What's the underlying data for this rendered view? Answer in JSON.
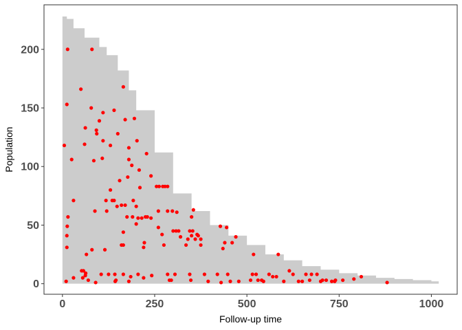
{
  "chart_data": {
    "type": "scatter",
    "title": "",
    "xlabel": "Follow-up time",
    "ylabel": "Population",
    "xlim": [
      -50,
      1070
    ],
    "ylim": [
      -9,
      238
    ],
    "x_ticks": [
      0,
      250,
      500,
      750,
      1000
    ],
    "y_ticks": [
      0,
      50,
      100,
      150,
      200
    ],
    "x_tick_labels": [
      "0",
      "250",
      "500",
      "750",
      "1000"
    ],
    "y_tick_labels": [
      "0",
      "50",
      "100",
      "150",
      "200"
    ],
    "grid": false,
    "legend": "none",
    "colors": {
      "area": "#cccccc",
      "points": "#ff0000",
      "panel_border": "#333333",
      "tick_text": "#4d4d4d"
    },
    "series": [
      {
        "kind": "area",
        "x": [
          0,
          12,
          30,
          60,
          100,
          120,
          150,
          180,
          200,
          250,
          300,
          350,
          400,
          450,
          500,
          550,
          600,
          650,
          700,
          750,
          800,
          850,
          900,
          950,
          1000,
          1020
        ],
        "values": [
          228,
          226,
          218,
          210,
          202,
          195,
          182,
          165,
          148,
          112,
          77,
          62,
          50,
          41,
          33,
          25,
          20,
          15,
          12,
          9,
          7,
          5,
          4,
          3,
          2,
          1
        ]
      },
      {
        "kind": "points",
        "points": [
          [
            5,
            118
          ],
          [
            10,
            2
          ],
          [
            12,
            153
          ],
          [
            14,
            200
          ],
          [
            12,
            41
          ],
          [
            13,
            49
          ],
          [
            15,
            57
          ],
          [
            12,
            31
          ],
          [
            25,
            106
          ],
          [
            30,
            71
          ],
          [
            30,
            5
          ],
          [
            50,
            166
          ],
          [
            52,
            11
          ],
          [
            55,
            5
          ],
          [
            57,
            11
          ],
          [
            60,
            119
          ],
          [
            62,
            133
          ],
          [
            62,
            7
          ],
          [
            63,
            9
          ],
          [
            65,
            25
          ],
          [
            70,
            3
          ],
          [
            78,
            150
          ],
          [
            80,
            200
          ],
          [
            80,
            29
          ],
          [
            85,
            105
          ],
          [
            88,
            62
          ],
          [
            90,
            1
          ],
          [
            92,
            131
          ],
          [
            93,
            128
          ],
          [
            100,
            139
          ],
          [
            105,
            8
          ],
          [
            108,
            107
          ],
          [
            110,
            122
          ],
          [
            110,
            146
          ],
          [
            115,
            29
          ],
          [
            118,
            71
          ],
          [
            120,
            62
          ],
          [
            125,
            8
          ],
          [
            130,
            118
          ],
          [
            130,
            80
          ],
          [
            135,
            71
          ],
          [
            140,
            71
          ],
          [
            140,
            148
          ],
          [
            142,
            8
          ],
          [
            143,
            2
          ],
          [
            145,
            3
          ],
          [
            148,
            66
          ],
          [
            150,
            128
          ],
          [
            155,
            88
          ],
          [
            160,
            67
          ],
          [
            160,
            33
          ],
          [
            165,
            168
          ],
          [
            165,
            44
          ],
          [
            165,
            33
          ],
          [
            165,
            8
          ],
          [
            170,
            140
          ],
          [
            170,
            67
          ],
          [
            175,
            57
          ],
          [
            177,
            91
          ],
          [
            180,
            106
          ],
          [
            180,
            116
          ],
          [
            180,
            2
          ],
          [
            185,
            6
          ],
          [
            188,
            101
          ],
          [
            190,
            57
          ],
          [
            192,
            71
          ],
          [
            195,
            141
          ],
          [
            200,
            66
          ],
          [
            200,
            51
          ],
          [
            202,
            122
          ],
          [
            205,
            56
          ],
          [
            205,
            8
          ],
          [
            208,
            97
          ],
          [
            210,
            82
          ],
          [
            215,
            56
          ],
          [
            220,
            31
          ],
          [
            220,
            5
          ],
          [
            222,
            35
          ],
          [
            225,
            57
          ],
          [
            228,
            111
          ],
          [
            230,
            57
          ],
          [
            240,
            92
          ],
          [
            240,
            56
          ],
          [
            242,
            7
          ],
          [
            255,
            83
          ],
          [
            260,
            48
          ],
          [
            260,
            62
          ],
          [
            262,
            83
          ],
          [
            270,
            42
          ],
          [
            272,
            83
          ],
          [
            275,
            33
          ],
          [
            278,
            83
          ],
          [
            285,
            83
          ],
          [
            285,
            62
          ],
          [
            285,
            8
          ],
          [
            290,
            3
          ],
          [
            295,
            3
          ],
          [
            298,
            62
          ],
          [
            300,
            45
          ],
          [
            305,
            8
          ],
          [
            308,
            45
          ],
          [
            310,
            61
          ],
          [
            315,
            45
          ],
          [
            320,
            40
          ],
          [
            335,
            33
          ],
          [
            340,
            38
          ],
          [
            345,
            8
          ],
          [
            345,
            45
          ],
          [
            348,
            3
          ],
          [
            350,
            57
          ],
          [
            350,
            41
          ],
          [
            353,
            45
          ],
          [
            355,
            63
          ],
          [
            360,
            38
          ],
          [
            365,
            42
          ],
          [
            368,
            41
          ],
          [
            375,
            38
          ],
          [
            375,
            33
          ],
          [
            385,
            8
          ],
          [
            395,
            2
          ],
          [
            420,
            8
          ],
          [
            428,
            49
          ],
          [
            430,
            1
          ],
          [
            435,
            30
          ],
          [
            440,
            35
          ],
          [
            445,
            48
          ],
          [
            448,
            8
          ],
          [
            455,
            2
          ],
          [
            460,
            35
          ],
          [
            470,
            40
          ],
          [
            478,
            2
          ],
          [
            510,
            3
          ],
          [
            515,
            8
          ],
          [
            518,
            25
          ],
          [
            525,
            8
          ],
          [
            530,
            3
          ],
          [
            540,
            3
          ],
          [
            545,
            2
          ],
          [
            560,
            8
          ],
          [
            570,
            6
          ],
          [
            580,
            6
          ],
          [
            585,
            25
          ],
          [
            600,
            2
          ],
          [
            615,
            11
          ],
          [
            625,
            8
          ],
          [
            640,
            2
          ],
          [
            650,
            2
          ],
          [
            660,
            8
          ],
          [
            670,
            3
          ],
          [
            675,
            8
          ],
          [
            690,
            8
          ],
          [
            700,
            2
          ],
          [
            705,
            3
          ],
          [
            715,
            3
          ],
          [
            730,
            2
          ],
          [
            738,
            2
          ],
          [
            740,
            3
          ],
          [
            760,
            3
          ],
          [
            790,
            4
          ],
          [
            810,
            6
          ],
          [
            880,
            1
          ]
        ]
      }
    ]
  }
}
